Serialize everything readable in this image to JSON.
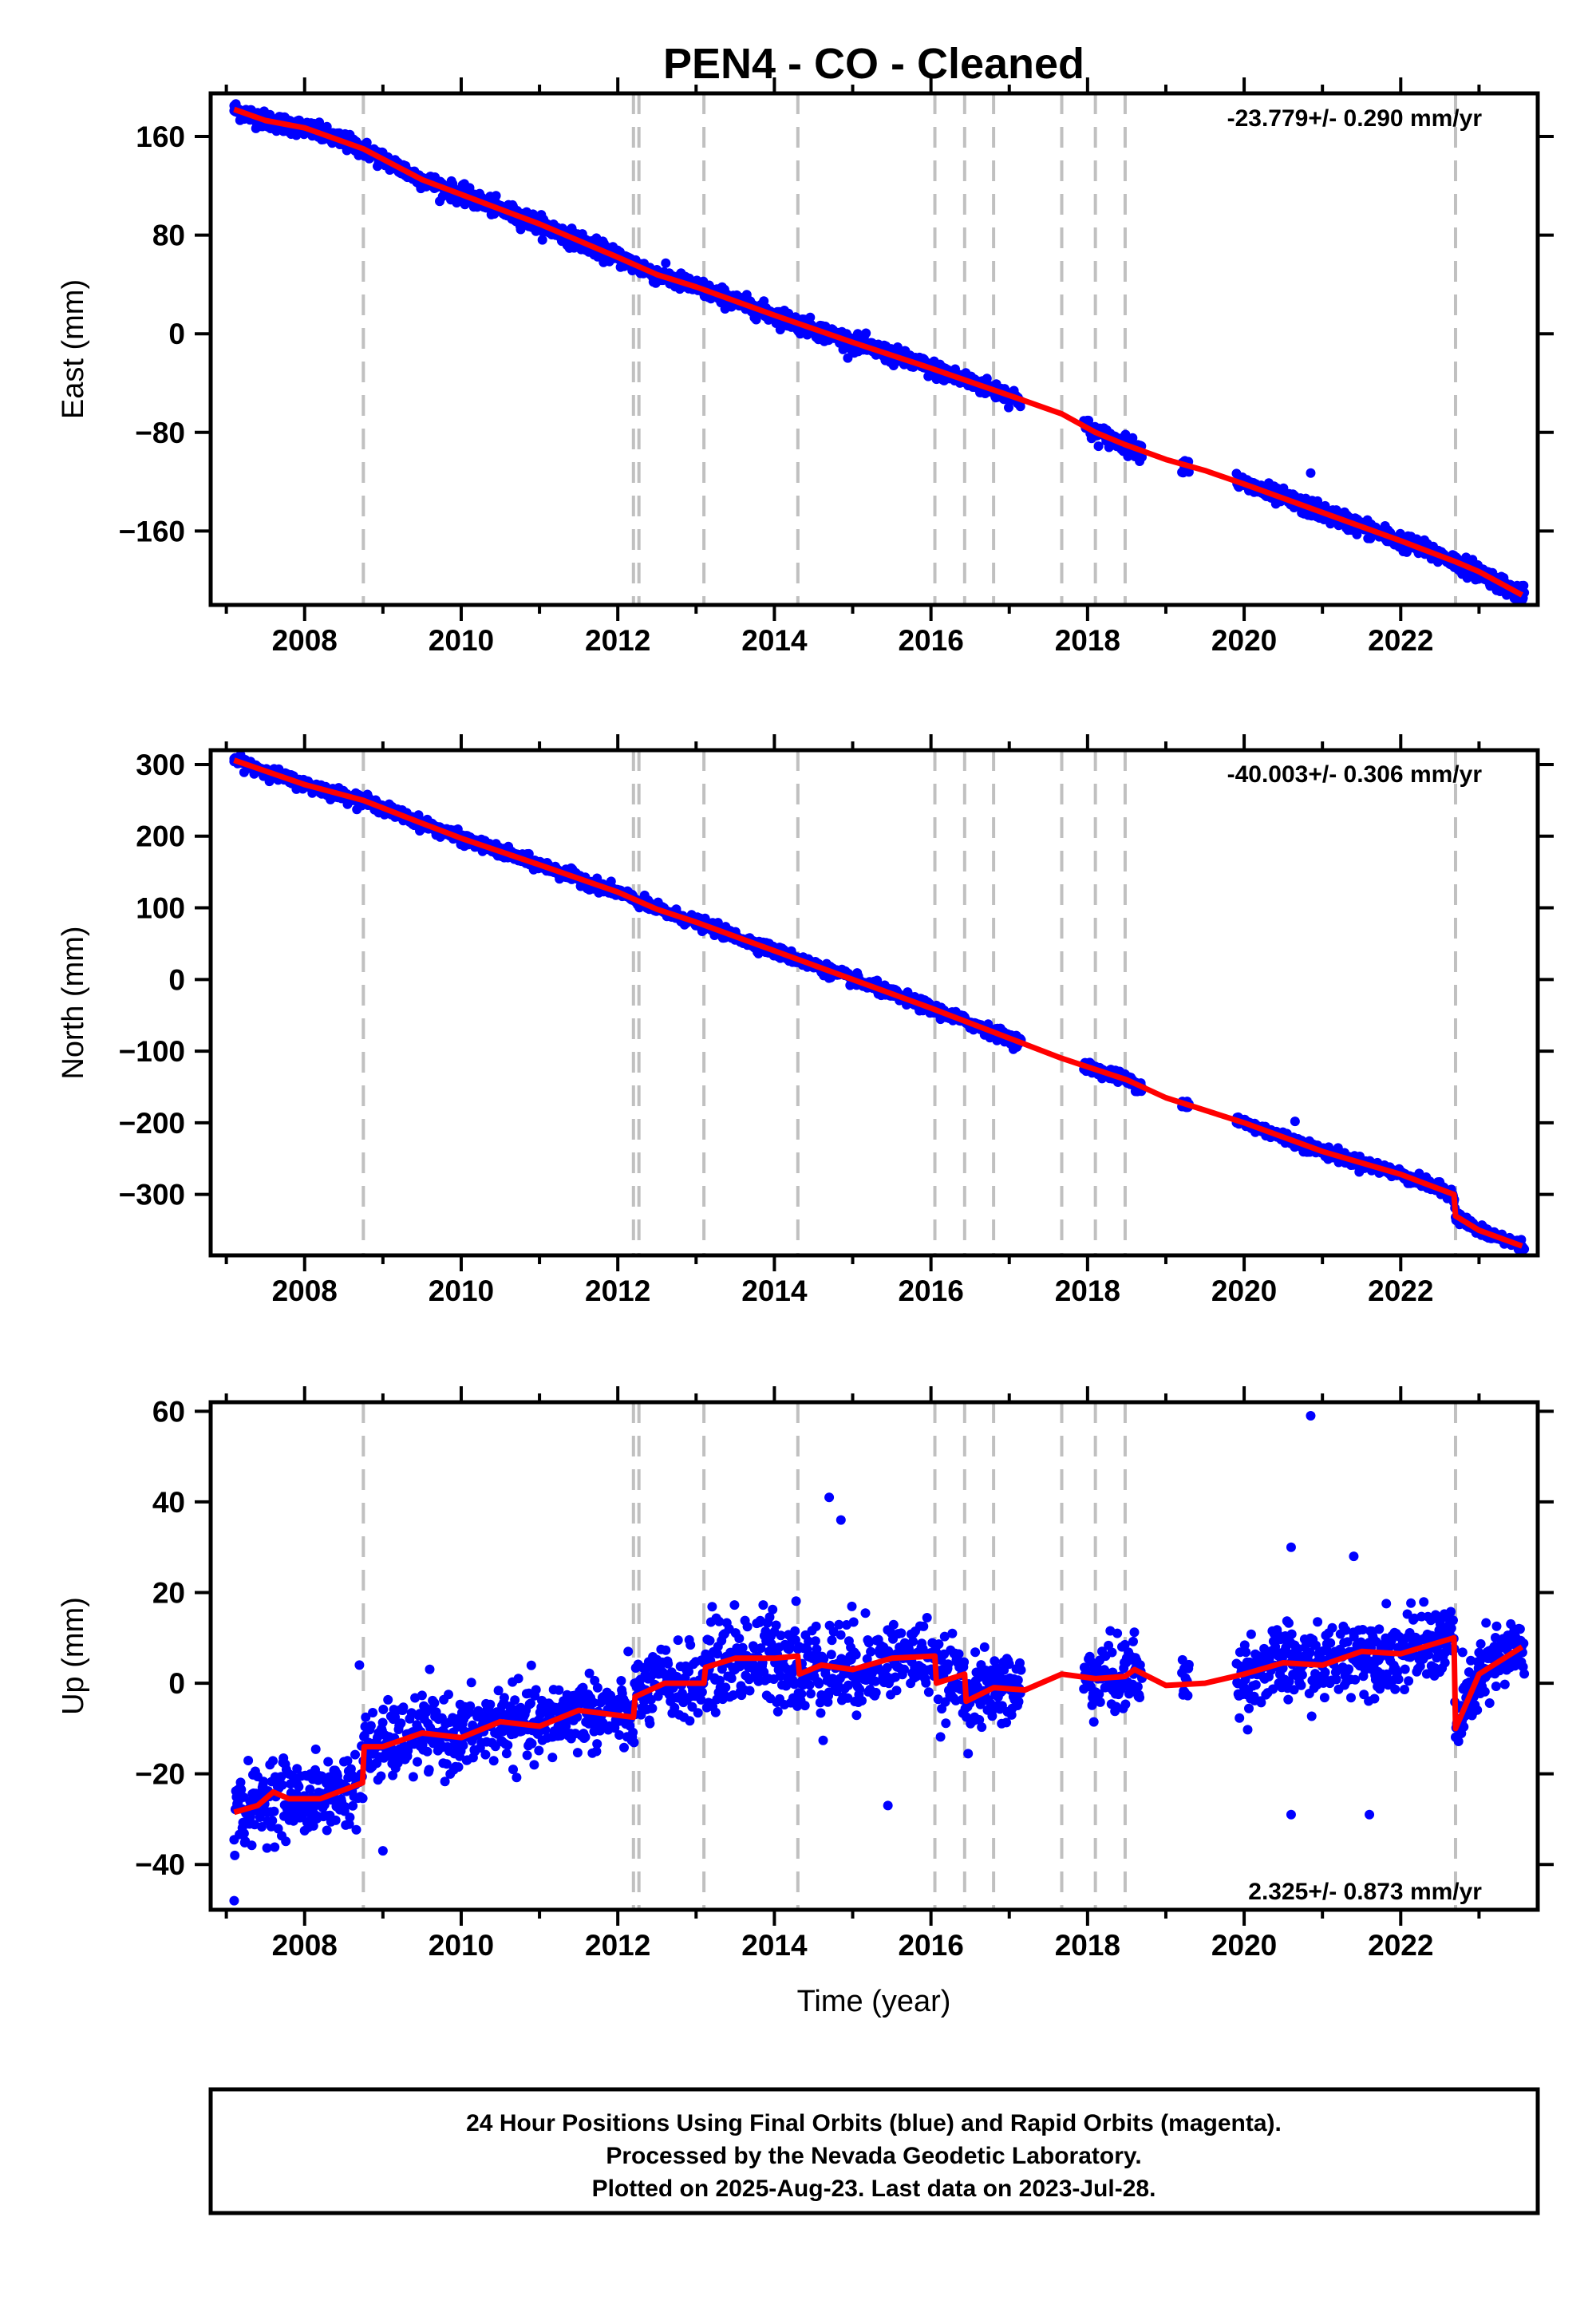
{
  "title": "PEN4  - CO - Cleaned",
  "colors": {
    "points": "#0000ff",
    "model": "#ff0000",
    "events": "#c0c0c0",
    "frame": "#000000"
  },
  "x_axis_label": "Time (year)",
  "footer": {
    "line1": "24 Hour Positions Using Final Orbits (blue) and Rapid Orbits (magenta).",
    "line2": "Processed by the Nevada Geodetic Laboratory.",
    "line3": "Plotted on 2025-Aug-23. Last data on 2023-Jul-28."
  },
  "chart_data": [
    {
      "type": "scatter",
      "ylabel": "East (mm)",
      "rate_label": "-23.779+/- 0.290 mm/yr",
      "xlim": [
        2006.8,
        2023.75
      ],
      "ylim": [
        -220,
        195
      ],
      "x_ticks": [
        2008,
        2010,
        2012,
        2014,
        2016,
        2018,
        2020,
        2022
      ],
      "y_ticks": [
        160,
        80,
        0,
        -80,
        -160
      ],
      "y_tick_labels": [
        "160",
        "80",
        "0",
        "−80",
        "−160"
      ],
      "event_lines": [
        2008.75,
        2012.2,
        2012.27,
        2013.1,
        2014.3,
        2016.05,
        2016.43,
        2016.8,
        2017.67,
        2018.1,
        2018.48,
        2022.7
      ],
      "data_gaps": [
        [
          2017.15,
          2017.95
        ],
        [
          2018.7,
          2019.2
        ],
        [
          2019.3,
          2019.9
        ]
      ],
      "model": {
        "x": [
          2007.1,
          2007.5,
          2008.0,
          2008.75,
          2009.5,
          2010.0,
          2011.0,
          2012.0,
          2012.5,
          2013.0,
          2014.0,
          2015.0,
          2016.0,
          2017.0,
          2017.67,
          2018.1,
          2018.48,
          2019.0,
          2019.5,
          2020.0,
          2021.0,
          2022.0,
          2022.7,
          2023.0,
          2023.55
        ],
        "y": [
          182,
          173,
          167,
          150,
          125,
          113,
          89,
          62,
          48,
          38,
          15,
          -7,
          -28,
          -50,
          -65,
          -80,
          -90,
          -102,
          -111,
          -122,
          -145,
          -168,
          -185,
          -193,
          -212
        ]
      },
      "points": {
        "x_start": 2007.1,
        "x_end": 2023.58,
        "noise": 3.5,
        "outliers": [
          {
            "x": 2007.1,
            "y": 185
          },
          {
            "x": 2020.85,
            "y": -113
          }
        ]
      }
    },
    {
      "type": "scatter",
      "ylabel": "North (mm)",
      "rate_label": "-40.003+/- 0.306 mm/yr",
      "xlim": [
        2006.8,
        2023.75
      ],
      "ylim": [
        -385,
        320
      ],
      "x_ticks": [
        2008,
        2010,
        2012,
        2014,
        2016,
        2018,
        2020,
        2022
      ],
      "y_ticks": [
        300,
        200,
        100,
        0,
        -100,
        -200,
        -300
      ],
      "y_tick_labels": [
        "300",
        "200",
        "100",
        "0",
        "−100",
        "−200",
        "−300"
      ],
      "event_lines": [
        2008.75,
        2012.2,
        2012.27,
        2013.1,
        2014.3,
        2016.05,
        2016.43,
        2016.8,
        2017.67,
        2018.1,
        2018.48,
        2022.7
      ],
      "data_gaps": [
        [
          2017.15,
          2017.95
        ],
        [
          2018.7,
          2019.2
        ],
        [
          2019.3,
          2019.9
        ]
      ],
      "model": {
        "x": [
          2007.1,
          2008.0,
          2008.75,
          2009.5,
          2010.0,
          2011.0,
          2012.0,
          2012.5,
          2013.0,
          2014.0,
          2015.0,
          2016.0,
          2017.0,
          2017.67,
          2018.5,
          2019.0,
          2020.0,
          2021.0,
          2022.0,
          2022.68,
          2022.7,
          2023.0,
          2023.55
        ],
        "y": [
          306,
          272,
          250,
          218,
          197,
          160,
          122,
          98,
          80,
          40,
          0,
          -40,
          -82,
          -110,
          -140,
          -165,
          -200,
          -240,
          -272,
          -300,
          -330,
          -350,
          -372
        ]
      },
      "points": {
        "x_start": 2007.1,
        "x_end": 2023.58,
        "noise": 4,
        "outliers": [
          {
            "x": 2007.1,
            "y": 308
          },
          {
            "x": 2020.65,
            "y": -198
          }
        ]
      }
    },
    {
      "type": "scatter",
      "ylabel": "Up (mm)",
      "rate_label": "2.325+/- 0.873 mm/yr",
      "xlim": [
        2006.8,
        2023.75
      ],
      "ylim": [
        -50,
        62
      ],
      "x_ticks": [
        2008,
        2010,
        2012,
        2014,
        2016,
        2018,
        2020,
        2022
      ],
      "y_ticks": [
        60,
        40,
        20,
        0,
        -20,
        -40
      ],
      "y_tick_labels": [
        "60",
        "40",
        "20",
        "0",
        "−20",
        "−40"
      ],
      "event_lines": [
        2008.75,
        2012.2,
        2012.27,
        2013.1,
        2014.3,
        2016.05,
        2016.43,
        2016.8,
        2017.67,
        2018.1,
        2018.48,
        2022.7
      ],
      "data_gaps": [
        [
          2017.15,
          2017.95
        ],
        [
          2018.7,
          2019.2
        ],
        [
          2019.3,
          2019.9
        ]
      ],
      "model": {
        "x": [
          2007.1,
          2007.4,
          2007.6,
          2007.8,
          2008.2,
          2008.74,
          2008.76,
          2009.0,
          2009.5,
          2010.0,
          2010.5,
          2011.0,
          2011.5,
          2012.2,
          2012.22,
          2012.6,
          2013.1,
          2013.12,
          2013.5,
          2014.0,
          2014.3,
          2014.32,
          2014.6,
          2015.0,
          2015.5,
          2016.05,
          2016.07,
          2016.43,
          2016.45,
          2016.8,
          2016.82,
          2017.2,
          2017.67,
          2018.1,
          2018.48,
          2018.6,
          2019.0,
          2019.5,
          2020.0,
          2020.5,
          2021.0,
          2021.5,
          2022.0,
          2022.68,
          2022.7,
          2023.0,
          2023.55
        ],
        "y": [
          -28.5,
          -27,
          -24,
          -25.5,
          -25.5,
          -22,
          -14,
          -14,
          -11,
          -12,
          -8.5,
          -9.5,
          -6,
          -7.5,
          -3,
          0,
          0,
          3.5,
          5.5,
          5.5,
          6,
          2,
          4,
          3,
          5.5,
          6,
          0,
          2,
          -4,
          -1,
          -1,
          -1.5,
          2,
          1,
          1.5,
          3,
          -0.5,
          0,
          2,
          4.5,
          4,
          7,
          6.5,
          10,
          -10,
          2,
          8
        ]
      },
      "points": {
        "x_start": 2007.1,
        "x_end": 2023.58,
        "noise": 4,
        "outliers": [
          {
            "x": 2007.1,
            "y": -48
          },
          {
            "x": 2020.85,
            "y": 59
          },
          {
            "x": 2014.7,
            "y": 41
          },
          {
            "x": 2014.85,
            "y": 36
          },
          {
            "x": 2008.7,
            "y": 4
          },
          {
            "x": 2020.6,
            "y": 30
          },
          {
            "x": 2021.4,
            "y": 28
          },
          {
            "x": 2021.6,
            "y": -29
          },
          {
            "x": 2020.6,
            "y": -29
          },
          {
            "x": 2015.45,
            "y": -27
          },
          {
            "x": 2009.0,
            "y": -37
          }
        ]
      }
    }
  ]
}
